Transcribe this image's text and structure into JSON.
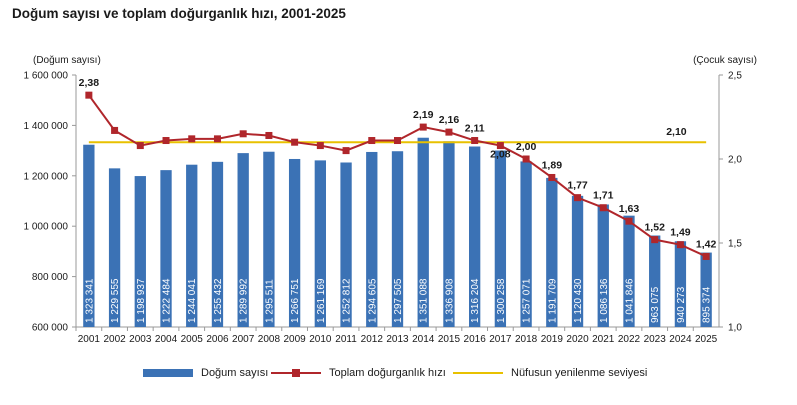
{
  "title": "Doğum sayısı ve toplam doğurganlık hızı, 2001-2025",
  "left_unit": "(Doğum sayısı)",
  "right_unit": "(Çocuk sayısı)",
  "colors": {
    "bars": "#3b72b5",
    "line": "#b0262b",
    "reference": "#e8c100",
    "axis": "#999999",
    "grid": "#d9d9d9"
  },
  "chart_data": {
    "type": "bar",
    "categories": [
      "2001",
      "2002",
      "2003",
      "2004",
      "2005",
      "2006",
      "2007",
      "2008",
      "2009",
      "2010",
      "2011",
      "2012",
      "2013",
      "2014",
      "2015",
      "2016",
      "2017",
      "2018",
      "2019",
      "2020",
      "2021",
      "2022",
      "2023",
      "2024",
      "2025"
    ],
    "ylim": [
      600000,
      1600000
    ],
    "y2lim": [
      1.0,
      2.5
    ],
    "yticks": [
      "600 000",
      "800 000",
      "1 000 000",
      "1 200 000",
      "1 400 000",
      "1 600 000"
    ],
    "y2ticks": [
      "1,0",
      "1,5",
      "2,0",
      "2,5"
    ],
    "series": [
      {
        "name": "Doğum sayısı",
        "type": "bar",
        "axis": "left",
        "values": [
          1323341,
          1229555,
          1198937,
          1222484,
          1244041,
          1255432,
          1289992,
          1295511,
          1266751,
          1261169,
          1252812,
          1294605,
          1297505,
          1351088,
          1336908,
          1316204,
          1300258,
          1257071,
          1191709,
          1120430,
          1086136,
          1041846,
          963075,
          940273,
          895374
        ],
        "labels": [
          "1 323 341",
          "1 229 555",
          "1 198 937",
          "1 222 484",
          "1 244 041",
          "1 255 432",
          "1 289 992",
          "1 295 511",
          "1 266 751",
          "1 261 169",
          "1 252 812",
          "1 294 605",
          "1 297 505",
          "1 351 088",
          "1 336 908",
          "1 316 204",
          "1 300 258",
          "1 257 071",
          "1 191 709",
          "1 120 430",
          "1 086 136",
          "1 041 846",
          "963 075",
          "940 273",
          "895 374"
        ]
      },
      {
        "name": "Toplam doğurganlık hızı",
        "type": "line",
        "axis": "right",
        "values": [
          2.38,
          2.17,
          2.08,
          2.11,
          2.12,
          2.12,
          2.15,
          2.14,
          2.1,
          2.08,
          2.05,
          2.11,
          2.11,
          2.19,
          2.16,
          2.11,
          2.08,
          2.0,
          1.89,
          1.77,
          1.71,
          1.63,
          1.52,
          1.49,
          1.42
        ],
        "labels": {
          "0": "2,38",
          "13": "2,19",
          "14": "2,16",
          "15": "2,11",
          "16": "2,08",
          "17": "2,00",
          "18": "1,89",
          "19": "1,77",
          "20": "1,71",
          "21": "1,63",
          "22": "1,52",
          "23": "1,49",
          "24": "1,42"
        }
      },
      {
        "name": "Nüfusun yenilenme seviyesi",
        "type": "reference",
        "axis": "right",
        "value": 2.1,
        "label": "2,10"
      }
    ]
  }
}
